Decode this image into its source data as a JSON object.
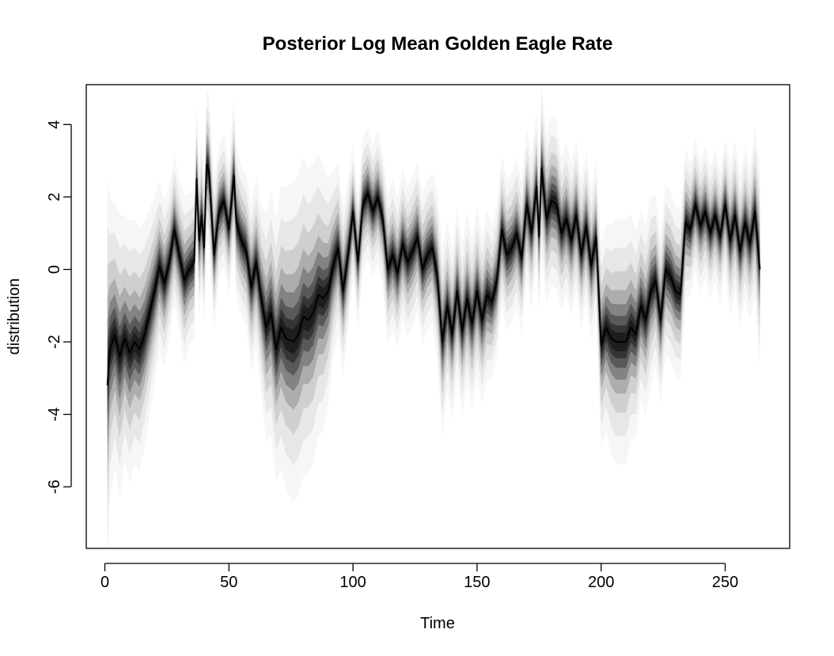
{
  "chart_data": {
    "type": "area",
    "title": "Posterior Log Mean Golden Eagle Rate",
    "xlabel": "Time",
    "ylabel": "distribution",
    "xlim": [
      -7.5,
      276
    ],
    "ylim": [
      -7.7,
      5.1
    ],
    "x_ticks": [
      0,
      50,
      100,
      150,
      200,
      250
    ],
    "y_ticks": [
      -6,
      -4,
      -2,
      0,
      2,
      4
    ],
    "grid": false,
    "legend": "none",
    "colors": {
      "median_line": "#000000",
      "band": "#000000",
      "frame": "#000000"
    },
    "series": [
      {
        "name": "",
        "x": [
          1,
          2,
          4,
          6,
          8,
          10,
          12,
          14,
          16,
          18,
          20,
          22,
          24,
          26,
          28,
          30,
          32,
          34,
          36,
          37,
          38,
          39,
          40,
          41,
          42,
          44,
          46,
          48,
          50,
          52,
          53,
          55,
          57,
          59,
          61,
          63,
          65,
          67,
          69,
          71,
          73,
          76,
          78,
          80,
          82,
          84,
          86,
          88,
          90,
          92,
          94,
          96,
          98,
          100,
          102,
          104,
          106,
          108,
          110,
          112,
          114,
          116,
          118,
          120,
          122,
          124,
          126,
          128,
          130,
          132,
          134,
          136,
          138,
          140,
          142,
          144,
          146,
          148,
          150,
          152,
          154,
          156,
          158,
          160,
          162,
          164,
          166,
          168,
          170,
          172,
          174,
          175,
          176,
          178,
          180,
          182,
          184,
          186,
          188,
          190,
          192,
          194,
          196,
          198,
          200,
          202,
          204,
          206,
          208,
          210,
          212,
          214,
          216,
          218,
          220,
          222,
          224,
          226,
          228,
          230,
          232,
          234,
          236,
          238,
          240,
          242,
          244,
          246,
          248,
          250,
          252,
          254,
          256,
          258,
          260,
          262,
          264
        ],
        "median": [
          -3.2,
          -2.2,
          -1.8,
          -2.4,
          -1.9,
          -2.3,
          -2.0,
          -2.2,
          -1.8,
          -1.2,
          -0.6,
          0.1,
          -0.4,
          0.2,
          1.1,
          0.4,
          -0.3,
          0.0,
          0.2,
          2.5,
          0.8,
          1.5,
          0.6,
          2.9,
          2.7,
          0.4,
          1.6,
          1.9,
          1.1,
          2.6,
          1.3,
          0.8,
          0.5,
          -0.5,
          0.2,
          -0.8,
          -1.6,
          -1.2,
          -2.2,
          -1.6,
          -1.9,
          -2.0,
          -1.8,
          -1.3,
          -1.4,
          -1.2,
          -0.7,
          -0.8,
          -0.6,
          0.1,
          0.6,
          -0.6,
          0.4,
          1.6,
          0.2,
          1.8,
          2.1,
          1.6,
          2.0,
          1.4,
          0.0,
          0.4,
          -0.1,
          0.7,
          0.2,
          0.5,
          0.9,
          0.0,
          0.4,
          0.6,
          -0.2,
          -2.0,
          -1.0,
          -1.8,
          -0.6,
          -1.7,
          -0.8,
          -1.5,
          -0.6,
          -1.4,
          -0.7,
          -0.9,
          -0.3,
          1.1,
          0.4,
          0.6,
          1.0,
          0.3,
          1.8,
          1.0,
          2.3,
          0.9,
          2.8,
          1.4,
          1.9,
          1.8,
          1.0,
          1.4,
          0.8,
          1.5,
          0.4,
          1.2,
          0.1,
          0.9,
          -2.1,
          -1.6,
          -1.9,
          -2.0,
          -2.0,
          -2.0,
          -1.6,
          -1.8,
          -1.0,
          -1.4,
          -0.6,
          -0.3,
          -1.4,
          0.0,
          -0.2,
          -0.6,
          -0.7,
          1.3,
          1.1,
          1.8,
          1.2,
          1.6,
          1.0,
          1.5,
          0.9,
          1.8,
          0.8,
          1.5,
          0.5,
          1.3,
          0.7,
          1.6,
          0.0
        ],
        "band_halfwidth": [
          2.2,
          1.6,
          1.4,
          1.5,
          1.3,
          1.4,
          1.3,
          1.3,
          1.2,
          1.1,
          1.0,
          0.9,
          0.9,
          0.8,
          0.8,
          0.8,
          0.9,
          0.8,
          0.8,
          0.8,
          0.8,
          0.8,
          0.8,
          0.8,
          0.8,
          0.8,
          0.7,
          0.7,
          0.7,
          0.8,
          0.8,
          0.8,
          0.8,
          0.9,
          0.9,
          1.0,
          1.2,
          1.3,
          1.4,
          1.5,
          1.6,
          1.7,
          1.7,
          1.7,
          1.6,
          1.6,
          1.5,
          1.4,
          1.2,
          1.0,
          0.9,
          0.9,
          0.8,
          0.7,
          0.7,
          0.7,
          0.7,
          0.7,
          0.7,
          0.7,
          0.8,
          0.8,
          0.8,
          0.8,
          0.8,
          0.8,
          0.8,
          0.8,
          0.8,
          0.8,
          0.9,
          1.0,
          0.9,
          0.9,
          0.9,
          0.9,
          0.9,
          0.9,
          0.9,
          0.9,
          0.9,
          0.8,
          0.8,
          0.8,
          0.8,
          0.8,
          0.8,
          0.8,
          0.8,
          0.8,
          0.8,
          0.8,
          0.9,
          0.9,
          0.9,
          0.9,
          0.8,
          0.8,
          0.8,
          0.8,
          0.8,
          0.8,
          0.8,
          0.8,
          1.1,
          1.1,
          1.2,
          1.3,
          1.3,
          1.3,
          1.2,
          1.1,
          1.0,
          1.0,
          1.0,
          0.9,
          0.9,
          0.9,
          0.9,
          0.9,
          0.9,
          0.8,
          0.7,
          0.7,
          0.7,
          0.7,
          0.7,
          0.7,
          0.7,
          0.7,
          0.8,
          0.8,
          0.8,
          0.8,
          0.8,
          0.9,
          1.1
        ]
      }
    ]
  }
}
